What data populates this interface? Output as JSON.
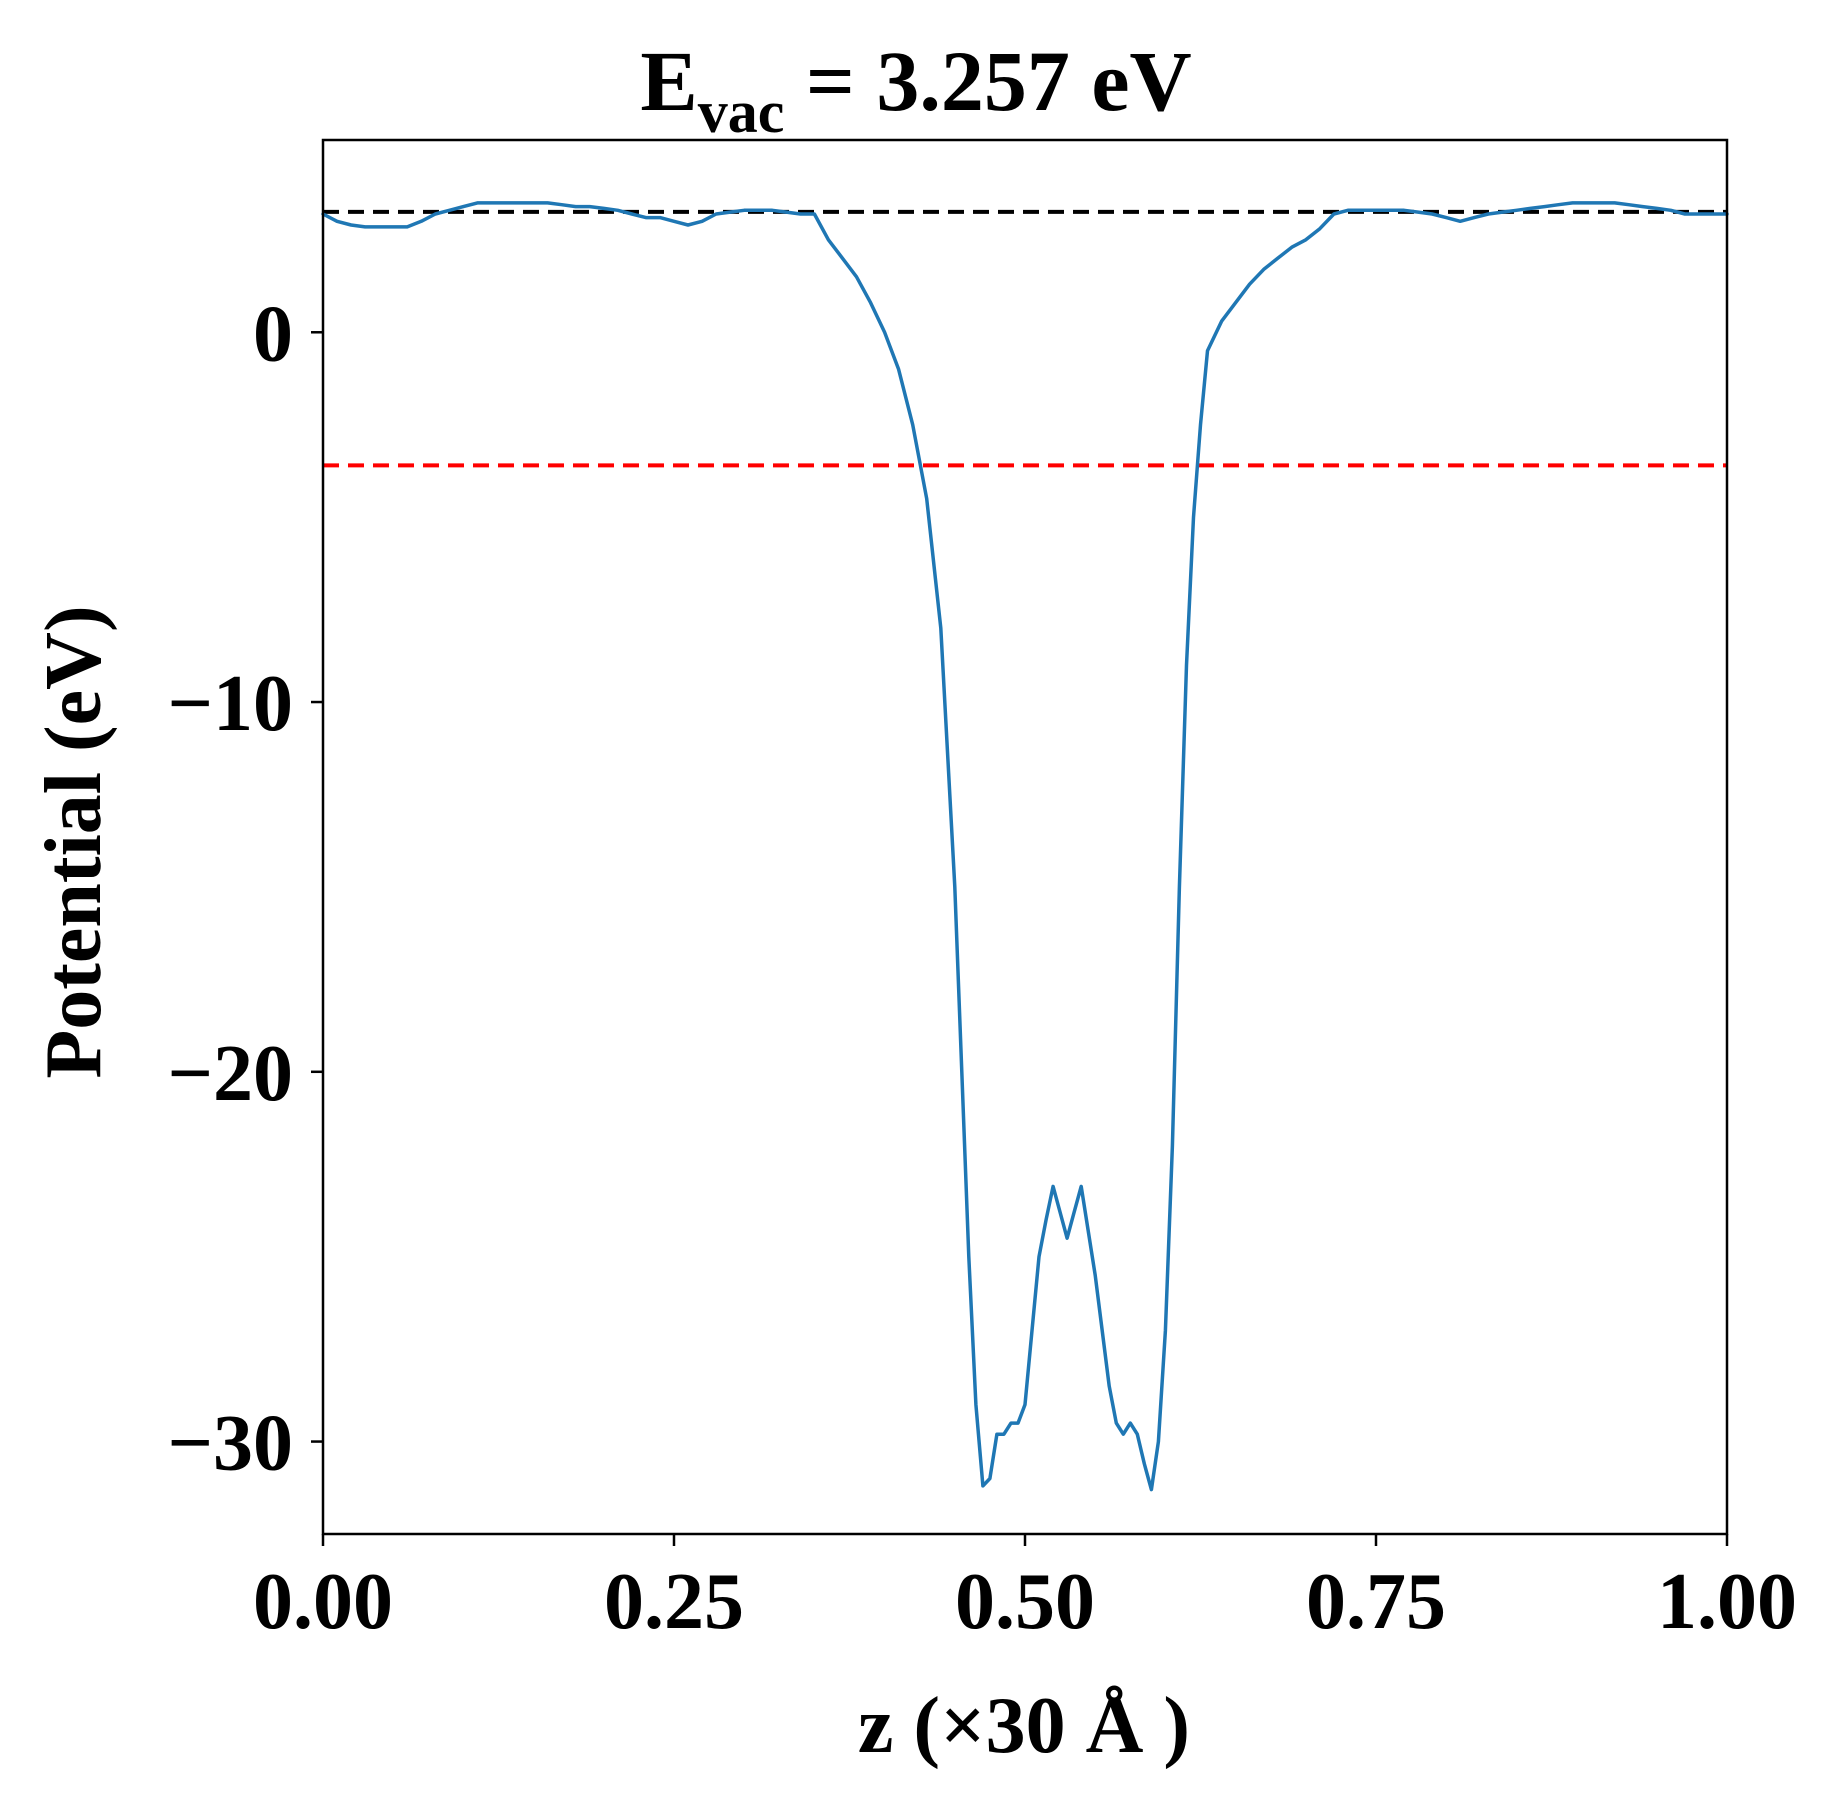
{
  "chart_data": {
    "type": "line",
    "title": {
      "prefix": "E",
      "subscript": "vac",
      "suffix": " = 3.257 eV"
    },
    "xlabel": "z (×30 Å )",
    "ylabel": "Potential (eV)",
    "xlim": [
      0.0,
      1.0
    ],
    "ylim": [
      -32.5,
      5.2
    ],
    "xticks": [
      0.0,
      0.25,
      0.5,
      0.75,
      1.0
    ],
    "xtick_labels": [
      "0.00",
      "0.25",
      "0.50",
      "0.75",
      "1.00"
    ],
    "yticks": [
      0,
      -10,
      -20,
      -30
    ],
    "ytick_labels": [
      "0",
      "−10",
      "−20",
      "−30"
    ],
    "grid": false,
    "reference_lines": [
      {
        "y": 3.257,
        "color": "#000000",
        "style": "dashed"
      },
      {
        "y": -3.6,
        "color": "#ff0000",
        "style": "dashed"
      }
    ],
    "series": [
      {
        "color": "#1f77b4",
        "x": [
          0.0,
          0.01,
          0.02,
          0.03,
          0.04,
          0.05,
          0.06,
          0.07,
          0.08,
          0.09,
          0.1,
          0.11,
          0.12,
          0.13,
          0.14,
          0.15,
          0.16,
          0.17,
          0.18,
          0.19,
          0.2,
          0.21,
          0.22,
          0.23,
          0.24,
          0.25,
          0.26,
          0.27,
          0.28,
          0.29,
          0.3,
          0.31,
          0.32,
          0.33,
          0.34,
          0.35,
          0.36,
          0.37,
          0.38,
          0.39,
          0.4,
          0.41,
          0.42,
          0.43,
          0.44,
          0.45,
          0.455,
          0.46,
          0.465,
          0.47,
          0.475,
          0.48,
          0.485,
          0.49,
          0.495,
          0.5,
          0.505,
          0.51,
          0.515,
          0.52,
          0.525,
          0.53,
          0.535,
          0.54,
          0.545,
          0.55,
          0.555,
          0.56,
          0.565,
          0.57,
          0.575,
          0.58,
          0.585,
          0.59,
          0.595,
          0.6,
          0.605,
          0.61,
          0.615,
          0.62,
          0.625,
          0.63,
          0.64,
          0.65,
          0.66,
          0.67,
          0.68,
          0.69,
          0.7,
          0.71,
          0.72,
          0.73,
          0.74,
          0.75,
          0.76,
          0.77,
          0.78,
          0.79,
          0.8,
          0.81,
          0.82,
          0.83,
          0.84,
          0.85,
          0.86,
          0.87,
          0.88,
          0.89,
          0.9,
          0.91,
          0.92,
          0.93,
          0.94,
          0.95,
          0.96,
          0.97,
          0.98,
          0.99,
          1.0
        ],
        "y": [
          3.2,
          3.0,
          2.9,
          2.85,
          2.85,
          2.85,
          2.85,
          3.0,
          3.2,
          3.3,
          3.4,
          3.5,
          3.5,
          3.5,
          3.5,
          3.5,
          3.5,
          3.45,
          3.4,
          3.4,
          3.35,
          3.3,
          3.2,
          3.1,
          3.1,
          3.0,
          2.9,
          3.0,
          3.2,
          3.25,
          3.3,
          3.3,
          3.3,
          3.25,
          3.2,
          3.2,
          2.5,
          2.0,
          1.5,
          0.8,
          0.0,
          -1.0,
          -2.5,
          -4.5,
          -8.0,
          -15.0,
          -20.0,
          -25.0,
          -29.0,
          -31.2,
          -31.0,
          -29.8,
          -29.8,
          -29.5,
          -29.5,
          -29.0,
          -27.0,
          -25.0,
          -24.0,
          -23.1,
          -23.8,
          -24.5,
          -23.8,
          -23.1,
          -24.3,
          -25.5,
          -27.0,
          -28.5,
          -29.5,
          -29.8,
          -29.5,
          -29.8,
          -30.6,
          -31.3,
          -30.0,
          -27.0,
          -22.0,
          -15.0,
          -9.0,
          -5.0,
          -2.5,
          -0.5,
          0.3,
          0.8,
          1.3,
          1.7,
          2.0,
          2.3,
          2.5,
          2.8,
          3.2,
          3.3,
          3.3,
          3.3,
          3.3,
          3.3,
          3.25,
          3.2,
          3.1,
          3.0,
          3.1,
          3.2,
          3.25,
          3.3,
          3.35,
          3.4,
          3.45,
          3.5,
          3.5,
          3.5,
          3.5,
          3.45,
          3.4,
          3.35,
          3.3,
          3.2,
          3.2,
          3.2,
          3.2
        ]
      }
    ]
  }
}
